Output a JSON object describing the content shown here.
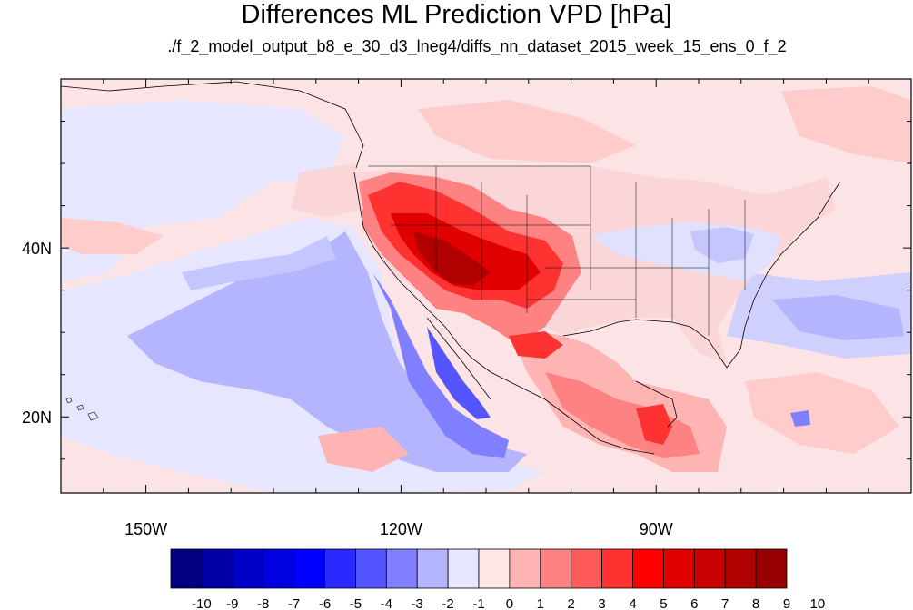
{
  "title": "Differences ML Prediction VPD [hPa]",
  "subtitle": "./f_2_model_output_b8_e_30_d3_lneg4/diffs_nn_dataset_2015_week_15_ens_0_f_2",
  "axes": {
    "x_ticks": [
      {
        "value": -150,
        "label": "150W"
      },
      {
        "value": -120,
        "label": "120W"
      },
      {
        "value": -90,
        "label": "90W"
      }
    ],
    "y_ticks": [
      {
        "value": 40,
        "label": "40N"
      },
      {
        "value": 20,
        "label": "20N"
      }
    ],
    "lon_range": [
      -160,
      -60
    ],
    "lat_range": [
      11,
      60
    ]
  },
  "colorbar": {
    "labels": [
      "-10",
      "-9",
      "-8",
      "-7",
      "-6",
      "-5",
      "-4",
      "-3",
      "-2",
      "-1",
      "0",
      "1",
      "2",
      "3",
      "4",
      "5",
      "6",
      "7",
      "8",
      "9",
      "10"
    ],
    "colors": [
      "#000080",
      "#0000a6",
      "#0000c8",
      "#0000e0",
      "#0000ff",
      "#2a2aff",
      "#5555ff",
      "#7f7fff",
      "#b4b4ff",
      "#e6e6ff",
      "#ffe6e6",
      "#ffb4b4",
      "#ff8282",
      "#ff5a5a",
      "#ff3232",
      "#ff0000",
      "#e00000",
      "#c80000",
      "#b00000",
      "#960000"
    ]
  }
}
